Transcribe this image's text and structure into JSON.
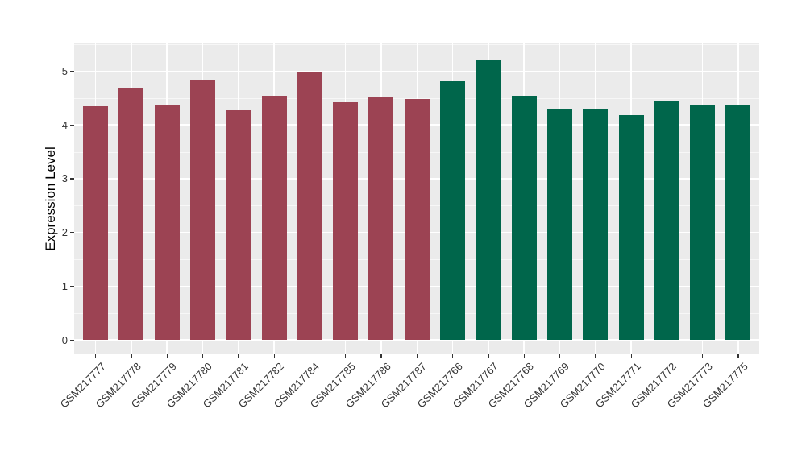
{
  "chart_data": {
    "type": "bar",
    "title": "",
    "xlabel": "",
    "ylabel": "Expression Level",
    "ylim": [
      0,
      5.5
    ],
    "yticks": [
      0,
      1,
      2,
      3,
      4,
      5
    ],
    "y_minor_ticks": [
      0.5,
      1.5,
      2.5,
      3.5,
      4.5,
      5.5
    ],
    "grid": "on",
    "legend_position": "none",
    "panel_background": "#EBEBEB",
    "gridline_major_color": "#FFFFFF",
    "gridline_minor_color": "#F5F5F5",
    "tick_color": "#333333",
    "colors": {
      "group1": "#9C4353",
      "group2": "#00664B"
    },
    "categories": [
      "GSM217777",
      "GSM217778",
      "GSM217779",
      "GSM217780",
      "GSM217781",
      "GSM217782",
      "GSM217784",
      "GSM217785",
      "GSM217786",
      "GSM217787",
      "GSM217766",
      "GSM217767",
      "GSM217768",
      "GSM217769",
      "GSM217770",
      "GSM217771",
      "GSM217772",
      "GSM217773",
      "GSM217775"
    ],
    "bars": [
      {
        "label": "GSM217777",
        "value": 4.35,
        "group": "group1"
      },
      {
        "label": "GSM217778",
        "value": 4.69,
        "group": "group1"
      },
      {
        "label": "GSM217779",
        "value": 4.37,
        "group": "group1"
      },
      {
        "label": "GSM217780",
        "value": 4.84,
        "group": "group1"
      },
      {
        "label": "GSM217781",
        "value": 4.29,
        "group": "group1"
      },
      {
        "label": "GSM217782",
        "value": 4.54,
        "group": "group1"
      },
      {
        "label": "GSM217784",
        "value": 4.99,
        "group": "group1"
      },
      {
        "label": "GSM217785",
        "value": 4.43,
        "group": "group1"
      },
      {
        "label": "GSM217786",
        "value": 4.53,
        "group": "group1"
      },
      {
        "label": "GSM217787",
        "value": 4.49,
        "group": "group1"
      },
      {
        "label": "GSM217766",
        "value": 4.81,
        "group": "group2"
      },
      {
        "label": "GSM217767",
        "value": 5.22,
        "group": "group2"
      },
      {
        "label": "GSM217768",
        "value": 4.55,
        "group": "group2"
      },
      {
        "label": "GSM217769",
        "value": 4.3,
        "group": "group2"
      },
      {
        "label": "GSM217770",
        "value": 4.3,
        "group": "group2"
      },
      {
        "label": "GSM217771",
        "value": 4.18,
        "group": "group2"
      },
      {
        "label": "GSM217772",
        "value": 4.46,
        "group": "group2"
      },
      {
        "label": "GSM217773",
        "value": 4.36,
        "group": "group2"
      },
      {
        "label": "GSM217775",
        "value": 4.38,
        "group": "group2"
      }
    ]
  }
}
